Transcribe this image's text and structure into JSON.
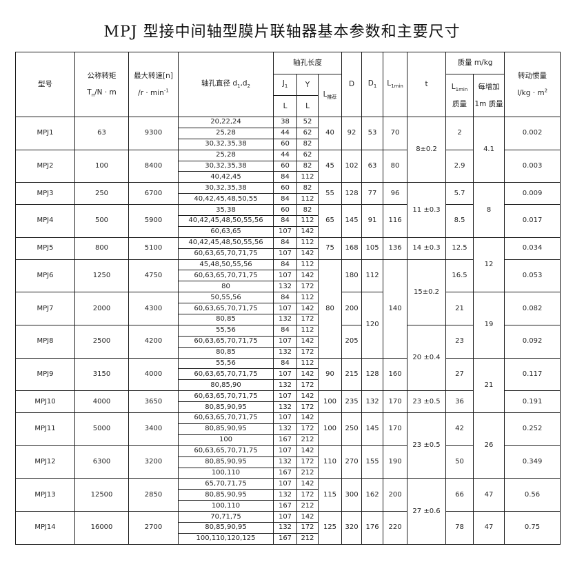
{
  "title": "MPJ 型接中间轴型膜片联轴器基本参数和主要尺寸",
  "header": {
    "model": "型号",
    "torque_1": "公称转矩",
    "torque_2a": "T",
    "torque_2sub": "n",
    "torque_2b": "/N · m",
    "speed_1": "最大转速[n]",
    "speed_2": "/r · min",
    "speed_sup": "-1",
    "bore_a": "轴孔直径 d",
    "bore_sub1": "1",
    "bore_b": ",d",
    "bore_sub2": "2",
    "hole_length": "轴孔长度",
    "j1": "J",
    "j1_sub": "1",
    "y": "Y",
    "l": "L",
    "l_rec": "L",
    "l_rec_sub": "推荐",
    "D": "D",
    "D1": "D",
    "D1_sub": "1",
    "L1min": "L",
    "L1min_sub": "1min",
    "t": "t",
    "mass": "质量 m/kg",
    "mass_l1min": "L",
    "mass_l1min_sub": "1min",
    "mass_l1min_2": "质量",
    "per_m_1": "每增加",
    "per_m_2": "1m 质量",
    "inertia_1": "转动惯量",
    "inertia_2": "I/kg · m",
    "inertia_sup": "2"
  },
  "models": [
    {
      "name": "MPJ1",
      "torque": "63",
      "speed": "9300",
      "bores": [
        {
          "d": "20,22,24",
          "j1": "38",
          "y": "52"
        },
        {
          "d": "25,28",
          "j1": "44",
          "y": "62"
        },
        {
          "d": "30,32,35,38",
          "j1": "60",
          "y": "82"
        }
      ]
    },
    {
      "name": "MPJ2",
      "torque": "100",
      "speed": "8400",
      "bores": [
        {
          "d": "25,28",
          "j1": "44",
          "y": "62"
        },
        {
          "d": "30,32,35,38",
          "j1": "60",
          "y": "82"
        },
        {
          "d": "40,42,45",
          "j1": "84",
          "y": "112"
        }
      ]
    },
    {
      "name": "MPJ3",
      "torque": "250",
      "speed": "6700",
      "bores": [
        {
          "d": "30,32,35,38",
          "j1": "60",
          "y": "82"
        },
        {
          "d": "40,42,45,48,50,55",
          "j1": "84",
          "y": "112"
        }
      ]
    },
    {
      "name": "MPJ4",
      "torque": "500",
      "speed": "5900",
      "bores": [
        {
          "d": "35,38",
          "j1": "60",
          "y": "82"
        },
        {
          "d": "40,42,45,48,50,55,56",
          "j1": "84",
          "y": "112"
        },
        {
          "d": "60,63,65",
          "j1": "107",
          "y": "142"
        }
      ]
    },
    {
      "name": "MPJ5",
      "torque": "800",
      "speed": "5100",
      "bores": [
        {
          "d": "40,42,45,48,50,55,56",
          "j1": "84",
          "y": "112"
        },
        {
          "d": "60,63,65,70,71,75",
          "j1": "107",
          "y": "142"
        }
      ]
    },
    {
      "name": "MPJ6",
      "torque": "1250",
      "speed": "4750",
      "bores": [
        {
          "d": "45,48,50,55,56",
          "j1": "84",
          "y": "112"
        },
        {
          "d": "60,63,65,70,71,75",
          "j1": "107",
          "y": "142"
        },
        {
          "d": "80",
          "j1": "132",
          "y": "172"
        }
      ]
    },
    {
      "name": "MPJ7",
      "torque": "2000",
      "speed": "4300",
      "bores": [
        {
          "d": "50,55,56",
          "j1": "84",
          "y": "112"
        },
        {
          "d": "60,63,65,70,71,75",
          "j1": "107",
          "y": "142"
        },
        {
          "d": "80,85",
          "j1": "132",
          "y": "172"
        }
      ]
    },
    {
      "name": "MPJ8",
      "torque": "2500",
      "speed": "4200",
      "bores": [
        {
          "d": "55,56",
          "j1": "84",
          "y": "112"
        },
        {
          "d": "60,63,65,70,71,75",
          "j1": "107",
          "y": "142"
        },
        {
          "d": "80,85",
          "j1": "132",
          "y": "172"
        }
      ]
    },
    {
      "name": "MPJ9",
      "torque": "3150",
      "speed": "4000",
      "bores": [
        {
          "d": "55,56",
          "j1": "84",
          "y": "112"
        },
        {
          "d": "60,63,65,70,71,75",
          "j1": "107",
          "y": "142"
        },
        {
          "d": "80,85,90",
          "j1": "132",
          "y": "172"
        }
      ]
    },
    {
      "name": "MPJ10",
      "torque": "4000",
      "speed": "3650",
      "bores": [
        {
          "d": "60,63,65,70,71,75",
          "j1": "107",
          "y": "142"
        },
        {
          "d": "80,85,90,95",
          "j1": "132",
          "y": "172"
        }
      ]
    },
    {
      "name": "MPJ11",
      "torque": "5000",
      "speed": "3400",
      "bores": [
        {
          "d": "60,63,65,70,71,75",
          "j1": "107",
          "y": "142"
        },
        {
          "d": "80,85,90,95",
          "j1": "132",
          "y": "172"
        },
        {
          "d": "100",
          "j1": "167",
          "y": "212"
        }
      ]
    },
    {
      "name": "MPJ12",
      "torque": "6300",
      "speed": "3200",
      "bores": [
        {
          "d": "60,63,65,70,71,75",
          "j1": "107",
          "y": "142"
        },
        {
          "d": "80,85,90,95",
          "j1": "132",
          "y": "172"
        },
        {
          "d": "100,110",
          "j1": "167",
          "y": "212"
        }
      ]
    },
    {
      "name": "MPJ13",
      "torque": "12500",
      "speed": "2850",
      "bores": [
        {
          "d": "65,70,71,75",
          "j1": "107",
          "y": "142"
        },
        {
          "d": "80,85,90,95",
          "j1": "132",
          "y": "172"
        },
        {
          "d": "100,110",
          "j1": "167",
          "y": "212"
        }
      ]
    },
    {
      "name": "MPJ14",
      "torque": "16000",
      "speed": "2700",
      "bores": [
        {
          "d": "70,71,75",
          "j1": "107",
          "y": "142"
        },
        {
          "d": "80,85,90,95",
          "j1": "132",
          "y": "172"
        },
        {
          "d": "100,110,120,125",
          "j1": "167",
          "y": "212"
        }
      ]
    }
  ],
  "columns": {
    "l_rec": [
      {
        "value": "40",
        "models": 1
      },
      {
        "value": "45",
        "models": 1
      },
      {
        "value": "55",
        "models": 1
      },
      {
        "value": "65",
        "models": 1
      },
      {
        "value": "75",
        "models": 1
      },
      {
        "value": "80",
        "models": 3
      },
      {
        "value": "90",
        "models": 1
      },
      {
        "value": "100",
        "models": 1
      },
      {
        "value": "100",
        "models": 1
      },
      {
        "value": "110",
        "models": 1
      },
      {
        "value": "115",
        "models": 1
      },
      {
        "value": "125",
        "models": 1
      }
    ],
    "D": [
      {
        "value": "92",
        "models": 1
      },
      {
        "value": "102",
        "models": 1
      },
      {
        "value": "128",
        "models": 1
      },
      {
        "value": "145",
        "models": 1
      },
      {
        "value": "168",
        "models": 1
      },
      {
        "value": "180",
        "models": 1
      },
      {
        "value": "200",
        "models": 1
      },
      {
        "value": "205",
        "models": 1
      },
      {
        "value": "215",
        "models": 1
      },
      {
        "value": "235",
        "models": 1
      },
      {
        "value": "250",
        "models": 1
      },
      {
        "value": "270",
        "models": 1
      },
      {
        "value": "300",
        "models": 1
      },
      {
        "value": "320",
        "models": 1
      }
    ],
    "D1": [
      {
        "value": "53",
        "models": 1
      },
      {
        "value": "63",
        "models": 1
      },
      {
        "value": "77",
        "models": 1
      },
      {
        "value": "91",
        "models": 1
      },
      {
        "value": "105",
        "models": 1
      },
      {
        "value": "112",
        "models": 1
      },
      {
        "value": "120",
        "models": 2
      },
      {
        "value": "128",
        "models": 1
      },
      {
        "value": "132",
        "models": 1
      },
      {
        "value": "145",
        "models": 1
      },
      {
        "value": "155",
        "models": 1
      },
      {
        "value": "162",
        "models": 1
      },
      {
        "value": "176",
        "models": 1
      }
    ],
    "L1min": [
      {
        "value": "70",
        "models": 1
      },
      {
        "value": "80",
        "models": 1
      },
      {
        "value": "96",
        "models": 1
      },
      {
        "value": "116",
        "models": 1
      },
      {
        "value": "136",
        "models": 1
      },
      {
        "value": "140",
        "models": 3
      },
      {
        "value": "160",
        "models": 1
      },
      {
        "value": "170",
        "models": 1
      },
      {
        "value": "170",
        "models": 1
      },
      {
        "value": "190",
        "models": 1
      },
      {
        "value": "200",
        "models": 1
      },
      {
        "value": "220",
        "models": 1
      }
    ],
    "t": [
      {
        "value": "8±0.2",
        "models": 2
      },
      {
        "value": "11 ±0.3",
        "models": 2
      },
      {
        "value": "14 ±0.3",
        "models": 1
      },
      {
        "value": "15±0.2",
        "models": 2
      },
      {
        "value": "20 ±0.4",
        "models": 2
      },
      {
        "value": "23 ±0.5",
        "models": 1
      },
      {
        "value": "23 ±0.5",
        "models": 2
      },
      {
        "value": "27 ±0.6",
        "models": 2
      }
    ],
    "mass": [
      {
        "value": "2",
        "models": 1
      },
      {
        "value": "2.9",
        "models": 1
      },
      {
        "value": "5.7",
        "models": 1
      },
      {
        "value": "8.5",
        "models": 1
      },
      {
        "value": "12.5",
        "models": 1
      },
      {
        "value": "16.5",
        "models": 1
      },
      {
        "value": "21",
        "models": 1
      },
      {
        "value": "23",
        "models": 1
      },
      {
        "value": "27",
        "models": 1
      },
      {
        "value": "36",
        "models": 1
      },
      {
        "value": "42",
        "models": 1
      },
      {
        "value": "50",
        "models": 1
      },
      {
        "value": "66",
        "models": 1
      },
      {
        "value": "78",
        "models": 1
      }
    ],
    "per_m": [
      {
        "value": "4.1",
        "models": 2
      },
      {
        "value": "8",
        "models": 2
      },
      {
        "value": "12",
        "models": 2
      },
      {
        "value": "19",
        "models": 2
      },
      {
        "value": "21",
        "models": 2
      },
      {
        "value": "26",
        "models": 2
      },
      {
        "value": "47",
        "models": 1
      },
      {
        "value": "47",
        "models": 1
      }
    ],
    "inertia": [
      {
        "value": "0.002",
        "models": 1
      },
      {
        "value": "0.003",
        "models": 1
      },
      {
        "value": "0.009",
        "models": 1
      },
      {
        "value": "0.017",
        "models": 1
      },
      {
        "value": "0.034",
        "models": 1
      },
      {
        "value": "0.053",
        "models": 1
      },
      {
        "value": "0.082",
        "models": 1
      },
      {
        "value": "0.092",
        "models": 1
      },
      {
        "value": "0.117",
        "models": 1
      },
      {
        "value": "0.191",
        "models": 1
      },
      {
        "value": "0.252",
        "models": 1
      },
      {
        "value": "0.349",
        "models": 1
      },
      {
        "value": "0.56",
        "models": 1
      },
      {
        "value": "0.75",
        "models": 1
      }
    ]
  }
}
